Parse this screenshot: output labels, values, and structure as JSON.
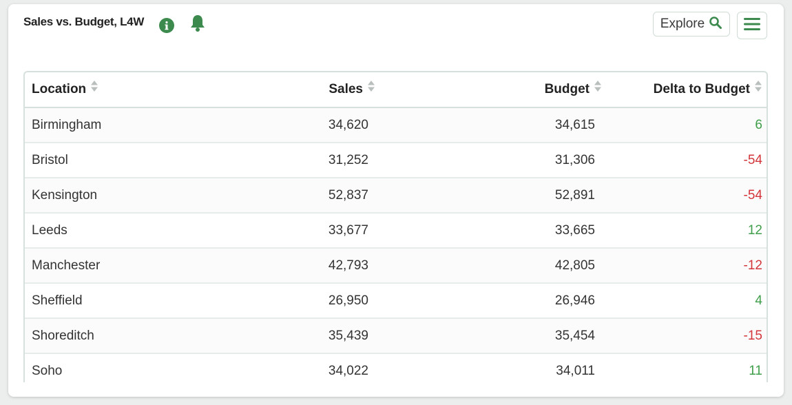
{
  "header": {
    "title": "Sales vs. Budget, L4W",
    "explore_label": "Explore"
  },
  "icons": {
    "info": "info-icon",
    "bell": "bell-icon",
    "search": "search-icon",
    "menu": "hamburger-menu-icon",
    "sort": "sort-icon"
  },
  "colors": {
    "accent": "#3d8a4e",
    "positive": "#3f9e4a",
    "negative": "#d3353a"
  },
  "table": {
    "columns": [
      "Location",
      "Sales",
      "Budget",
      "Delta to Budget"
    ],
    "rows": [
      {
        "location": "Birmingham",
        "sales": "34,620",
        "budget": "34,615",
        "delta": "6"
      },
      {
        "location": "Bristol",
        "sales": "31,252",
        "budget": "31,306",
        "delta": "-54"
      },
      {
        "location": "Kensington",
        "sales": "52,837",
        "budget": "52,891",
        "delta": "-54"
      },
      {
        "location": "Leeds",
        "sales": "33,677",
        "budget": "33,665",
        "delta": "12"
      },
      {
        "location": "Manchester",
        "sales": "42,793",
        "budget": "42,805",
        "delta": "-12"
      },
      {
        "location": "Sheffield",
        "sales": "26,950",
        "budget": "26,946",
        "delta": "4"
      },
      {
        "location": "Shoreditch",
        "sales": "35,439",
        "budget": "35,454",
        "delta": "-15"
      },
      {
        "location": "Soho",
        "sales": "34,022",
        "budget": "34,011",
        "delta": "11"
      }
    ]
  }
}
